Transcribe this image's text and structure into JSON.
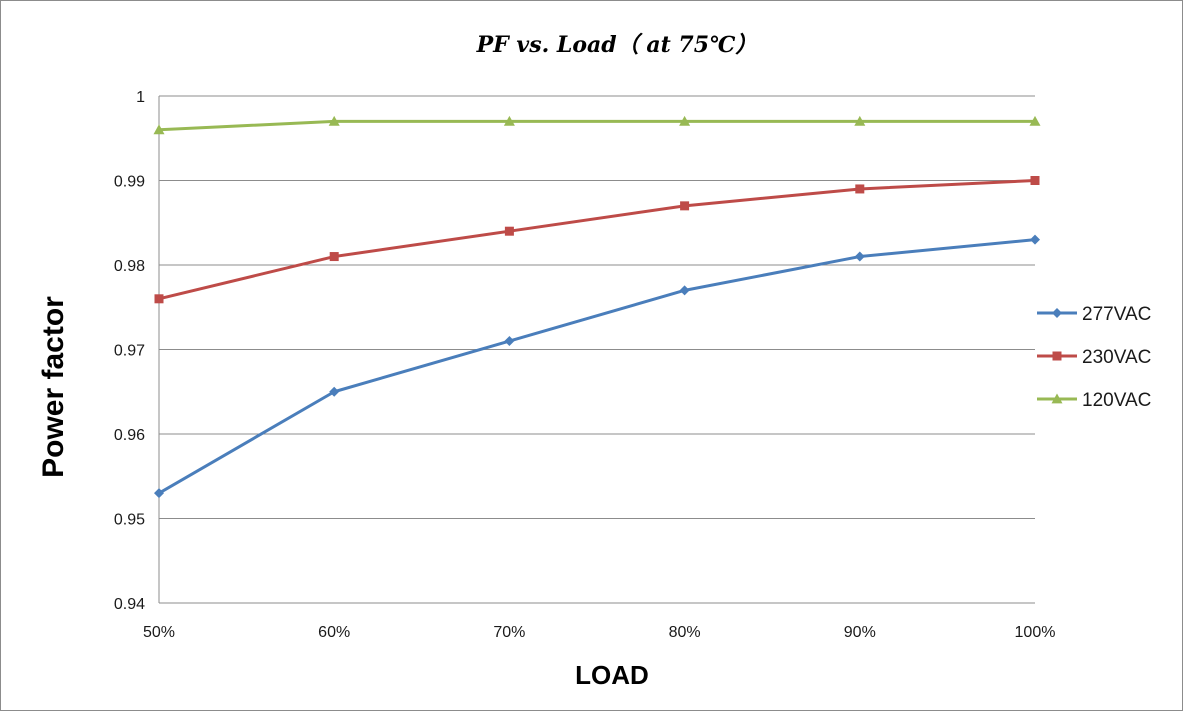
{
  "chart_data": {
    "type": "line",
    "title": "PF vs. Load（ at 75℃）",
    "xlabel": "LOAD",
    "ylabel": "Power factor",
    "categories": [
      "50%",
      "60%",
      "70%",
      "80%",
      "90%",
      "100%"
    ],
    "ylim": [
      0.94,
      1
    ],
    "yticks": [
      0.94,
      0.95,
      0.96,
      0.97,
      0.98,
      0.99,
      1
    ],
    "ytick_labels": [
      "0.94",
      "0.95",
      "0.96",
      "0.97",
      "0.98",
      "0.99",
      "1"
    ],
    "grid": "horizontal",
    "legend_position": "right",
    "series": [
      {
        "name": "277VAC",
        "color": "#4a7ebb",
        "marker": "diamond",
        "values": [
          0.953,
          0.965,
          0.971,
          0.977,
          0.981,
          0.983
        ]
      },
      {
        "name": "230VAC",
        "color": "#be4b48",
        "marker": "square",
        "values": [
          0.976,
          0.981,
          0.984,
          0.987,
          0.989,
          0.99
        ]
      },
      {
        "name": "120VAC",
        "color": "#98b954",
        "marker": "triangle",
        "values": [
          0.996,
          0.997,
          0.997,
          0.997,
          0.997,
          0.997
        ]
      }
    ]
  }
}
